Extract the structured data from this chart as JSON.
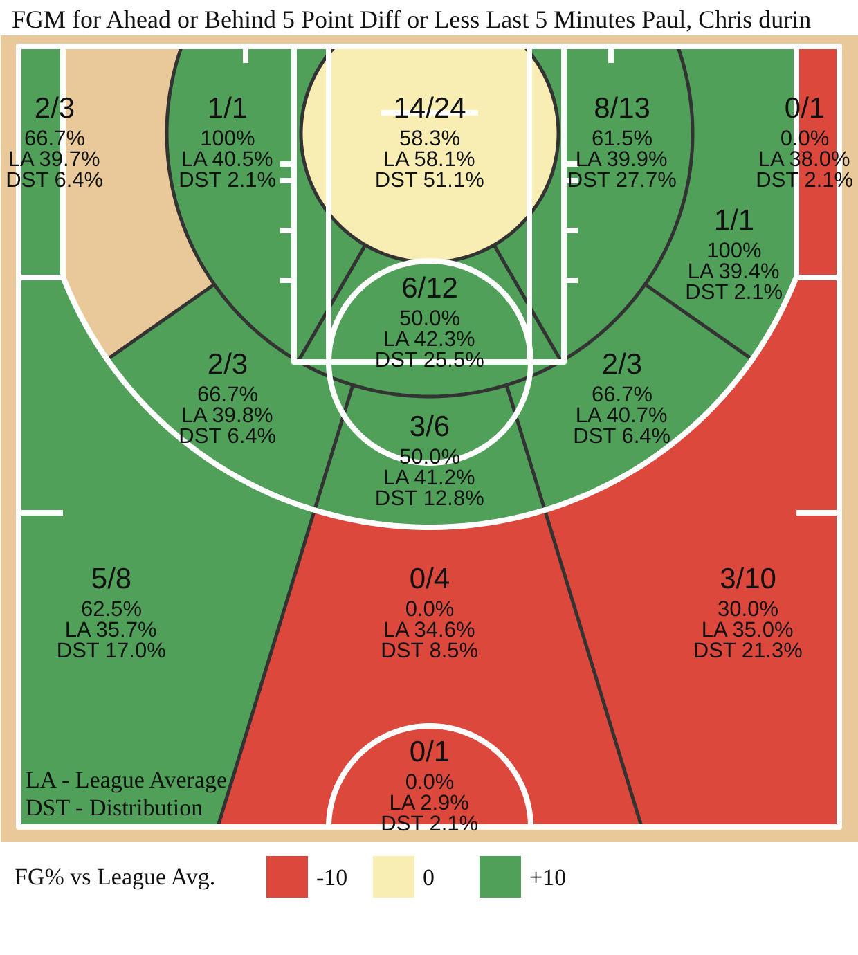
{
  "chart_data": {
    "type": "other",
    "title": "FGM for Ahead or Behind 5 Point Diff or Less Last 5 Minutes Paul, Chris durin",
    "categories": [
      "2/3",
      "1/1",
      "14/24",
      "8/13",
      "0/1",
      "1/1",
      "6/12",
      "2/3",
      "2/3",
      "3/6",
      "5/8",
      "0/4",
      "3/10",
      "0/1"
    ],
    "series": [
      {
        "name": "-10",
        "color": "#dd483c",
        "values": [
          null,
          null,
          null,
          null,
          0.0,
          null,
          null,
          null,
          null,
          null,
          null,
          0.0,
          30.0,
          0.0
        ],
        "value_labels": [
          null,
          null,
          null,
          null,
          "0.0%\nLA 38.0%\nDST 2.1%",
          null,
          null,
          null,
          null,
          null,
          null,
          "0.0%\nLA 34.6%\nDST 8.5%",
          "30.0%\nLA 35.0%\nDST 21.3%",
          "0.0%\nLA 2.9%\nDST 2.1%"
        ]
      },
      {
        "name": "0",
        "color": "#f8eeb4",
        "values": [
          null,
          null,
          58.3,
          null,
          null,
          null,
          null,
          null,
          null,
          null,
          null,
          null,
          null,
          null
        ],
        "value_labels": [
          null,
          null,
          "58.3%\nLA 58.1%\nDST 51.1%",
          null,
          null,
          null,
          null,
          null,
          null,
          null,
          null,
          null,
          null,
          null
        ]
      },
      {
        "name": "+10",
        "color": "#50a05a",
        "values": [
          66.7,
          100,
          null,
          61.5,
          null,
          100,
          50.0,
          66.7,
          66.7,
          50.0,
          62.5,
          null,
          null,
          null
        ],
        "value_labels": [
          "66.7%\nLA 39.7%\nDST 6.4%",
          "100%\nLA 40.5%\nDST 2.1%",
          null,
          "61.5%\nLA 39.9%\nDST 27.7%",
          null,
          "100%\nLA 39.4%\nDST 2.1%",
          "50.0%\nLA 42.3%\nDST 25.5%",
          "66.7%\nLA 39.8%\nDST 6.4%",
          "66.7%\nLA 40.7%\nDST 6.4%",
          "50.0%\nLA 41.2%\nDST 12.8%",
          "62.5%\nLA 35.7%\nDST 17.0%",
          null,
          null,
          null
        ]
      }
    ],
    "legend_title": "FG% vs League Avg.",
    "legend": "bottom left",
    "annotations": [
      "LA - League Average",
      "DST - Distribution"
    ]
  }
}
